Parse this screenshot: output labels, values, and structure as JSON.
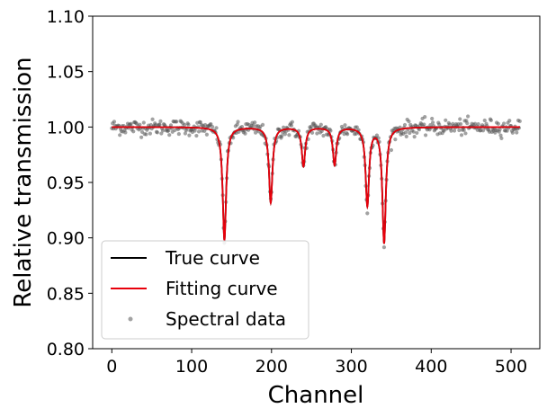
{
  "chart_data": {
    "type": "line",
    "title": "",
    "xlabel": "Channel",
    "ylabel": "Relative transmission",
    "xlim": [
      -24,
      536
    ],
    "ylim": [
      0.8,
      1.1
    ],
    "xticks": [
      0,
      100,
      200,
      300,
      400,
      500
    ],
    "xtick_labels": [
      "0",
      "100",
      "200",
      "300",
      "400",
      "500"
    ],
    "yticks": [
      0.8,
      0.85,
      0.9,
      0.95,
      1.0,
      1.05,
      1.1
    ],
    "ytick_labels": [
      "0.80",
      "0.85",
      "0.90",
      "0.95",
      "1.00",
      "1.05",
      "1.10"
    ],
    "grid": false,
    "legend_position": "lower-left",
    "baseline": 1.0,
    "absorption_lines": [
      {
        "channel": 141,
        "min_transmission": 0.898
      },
      {
        "channel": 199,
        "min_transmission": 0.932
      },
      {
        "channel": 240,
        "min_transmission": 0.965
      },
      {
        "channel": 279,
        "min_transmission": 0.966
      },
      {
        "channel": 320,
        "min_transmission": 0.93
      },
      {
        "channel": 341,
        "min_transmission": 0.896
      }
    ],
    "series": [
      {
        "name": "True curve",
        "type": "line",
        "color": "#000000"
      },
      {
        "name": "Fitting curve",
        "type": "line",
        "color": "#e8000b"
      },
      {
        "name": "Spectral data",
        "type": "scatter",
        "color": "#555555",
        "x_range": [
          0,
          511
        ],
        "noise_sd": 0.0035
      }
    ]
  }
}
